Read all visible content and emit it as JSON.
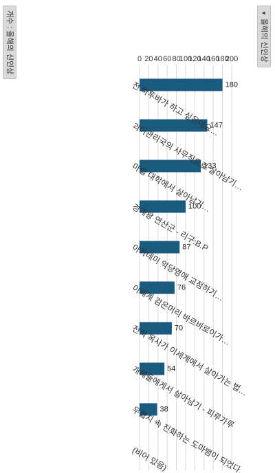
{
  "filter": {
    "label": "올해의 신인상",
    "icon": "dropdown-arrow-icon"
  },
  "series_chip": {
    "label": "개수 : 올해의 신인상"
  },
  "colors": {
    "bar": "#1a5a7e",
    "grid": "#d9d9d9",
    "text": "#333333",
    "chip_bg": "#d9d9d9"
  },
  "chart_data": {
    "type": "bar",
    "orientation": "vertical",
    "categories": [
      "전 바투바가 하고 싶은데요…",
      "괴이관리국의 사무직으로 살아남기…",
      "마법 대학에서 살아남기…",
      "경계왕 연산군 - 리구:B.P",
      "아카데미 악당영애 교정하기…",
      "이세계 검은머리 바르바로이가…",
      "전직 목사가 이세계에서 살아가는 법…",
      "개체들에게서 살아남기 - 피루가루",
      "무협지 속 진화하는 도마뱀이 되었다…",
      "(비어 있음)"
    ],
    "values": [
      180,
      147,
      133,
      100,
      87,
      76,
      70,
      54,
      38,
      null
    ],
    "data_labels": [
      "180",
      "147",
      "133",
      "100",
      "87",
      "76",
      "70",
      "54",
      "38",
      ""
    ],
    "ylim": [
      0,
      200
    ],
    "yticks": [
      "0",
      "20",
      "40",
      "60",
      "80",
      "100",
      "120",
      "140",
      "160",
      "180",
      "200"
    ],
    "grid": true,
    "series_name": "개수 : 올해의 신인상"
  }
}
